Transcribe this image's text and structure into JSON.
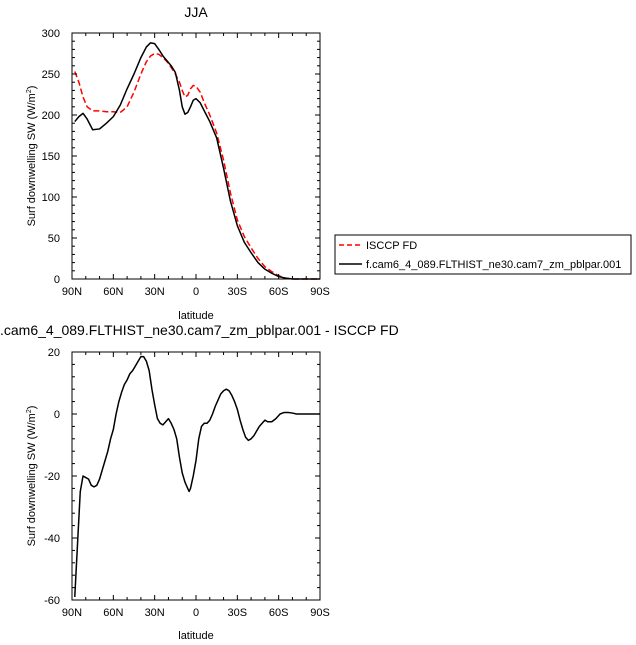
{
  "chart_data": [
    {
      "type": "line",
      "title": "JJA",
      "xlabel": "latitude",
      "ylabel": "Surf downwelling SW",
      "yunit_base": "(W/m",
      "yunit_sup": "2",
      "yunit_close": ")",
      "xlim": [
        90,
        -90
      ],
      "ylim": [
        0,
        300
      ],
      "xticks": [
        90,
        60,
        30,
        0,
        -30,
        -60,
        -90
      ],
      "xtick_labels": [
        "90N",
        "60N",
        "30N",
        "0",
        "30S",
        "60S",
        "90S"
      ],
      "yticks": [
        0,
        50,
        100,
        150,
        200,
        250,
        300
      ],
      "ytick_labels": [
        "0",
        "50",
        "100",
        "150",
        "200",
        "250",
        "300"
      ],
      "legend": "right",
      "grid": false,
      "series": [
        {
          "name": "ISCCP FD",
          "color": "#ff0000",
          "dash": "dashed",
          "x": [
            88,
            85,
            82,
            79,
            75,
            70,
            65,
            60,
            55,
            50,
            45,
            40,
            36,
            33,
            30,
            27,
            24,
            21,
            18,
            15,
            12,
            10,
            8,
            6,
            4,
            2,
            0,
            -3,
            -6,
            -10,
            -15,
            -20,
            -25,
            -30,
            -35,
            -40,
            -45,
            -50,
            -55,
            -60,
            -65,
            -70,
            -75,
            -80,
            -85,
            -90
          ],
          "y": [
            253,
            240,
            222,
            210,
            205,
            205,
            204,
            204,
            203,
            210,
            228,
            250,
            265,
            272,
            275,
            274,
            270,
            265,
            258,
            250,
            240,
            230,
            222,
            224,
            232,
            236,
            235,
            228,
            215,
            200,
            178,
            145,
            105,
            72,
            52,
            38,
            25,
            15,
            9,
            4,
            1,
            0,
            0,
            0,
            0,
            0
          ]
        },
        {
          "name": "f.cam6_4_089.FLTHIST_ne30.cam7_zm_pblpar.001",
          "color": "#000000",
          "dash": "solid",
          "x": [
            88,
            85,
            82,
            79,
            75,
            70,
            65,
            60,
            55,
            50,
            45,
            40,
            36,
            33,
            30,
            27,
            24,
            21,
            18,
            15,
            12,
            10,
            8,
            6,
            4,
            2,
            0,
            -3,
            -6,
            -10,
            -15,
            -20,
            -25,
            -30,
            -35,
            -40,
            -45,
            -50,
            -55,
            -60,
            -65,
            -70,
            -75,
            -80,
            -85,
            -90
          ],
          "y": [
            192,
            198,
            202,
            195,
            182,
            183,
            190,
            198,
            212,
            232,
            250,
            270,
            283,
            288,
            287,
            280,
            272,
            266,
            260,
            252,
            230,
            210,
            201,
            203,
            210,
            218,
            220,
            215,
            205,
            192,
            172,
            135,
            95,
            65,
            45,
            32,
            20,
            12,
            7,
            3,
            1,
            0,
            0,
            0,
            0,
            0
          ]
        }
      ]
    },
    {
      "type": "line",
      "title": ".cam6_4_089.FLTHIST_ne30.cam7_zm_pblpar.001 - ISCCP FD",
      "xlabel": "latitude",
      "ylabel": "Surf downwelling SW",
      "yunit_base": "(W/m",
      "yunit_sup": "2",
      "yunit_close": ")",
      "xlim": [
        90,
        -90
      ],
      "ylim": [
        -60,
        20
      ],
      "xticks": [
        90,
        60,
        30,
        0,
        -30,
        -60,
        -90
      ],
      "xtick_labels": [
        "90N",
        "60N",
        "30N",
        "0",
        "30S",
        "60S",
        "90S"
      ],
      "yticks": [
        -60,
        -40,
        -20,
        0,
        20
      ],
      "ytick_labels": [
        "-60",
        "-40",
        "-20",
        "0",
        "20"
      ],
      "grid": false,
      "series": [
        {
          "color": "#000000",
          "dash": "solid",
          "x": [
            88,
            86,
            84,
            82,
            80,
            78,
            76,
            74,
            72,
            70,
            68,
            66,
            64,
            62,
            60,
            58,
            56,
            54,
            52,
            50,
            48,
            46,
            44,
            42,
            40,
            38,
            36,
            34,
            32,
            30,
            28,
            26,
            24,
            22,
            20,
            18,
            16,
            14,
            12,
            10,
            8,
            6,
            5,
            4,
            3,
            2,
            0,
            -2,
            -4,
            -6,
            -8,
            -10,
            -12,
            -14,
            -16,
            -18,
            -20,
            -22,
            -24,
            -26,
            -28,
            -30,
            -32,
            -34,
            -36,
            -38,
            -40,
            -42,
            -44,
            -46,
            -48,
            -50,
            -52,
            -55,
            -58,
            -61,
            -64,
            -67,
            -70,
            -73,
            -76,
            -79,
            -82,
            -85,
            -88,
            -90
          ],
          "y": [
            -59,
            -42,
            -25,
            -20,
            -20.5,
            -21,
            -23,
            -23.5,
            -23,
            -21,
            -18,
            -15,
            -12,
            -8,
            -5,
            0,
            4,
            7,
            9.5,
            11,
            13,
            14,
            15.5,
            17,
            18.5,
            18.5,
            17,
            14,
            8,
            3,
            -1.5,
            -3,
            -3.5,
            -2.5,
            -1.5,
            -3,
            -5,
            -8,
            -14,
            -19,
            -22,
            -24,
            -25,
            -24,
            -22,
            -20,
            -15,
            -8,
            -4,
            -3,
            -3,
            -2,
            0,
            2.5,
            4.5,
            6.5,
            7.5,
            8,
            7.5,
            6,
            4,
            1.5,
            -2,
            -5,
            -7.5,
            -8.5,
            -8,
            -7,
            -5.5,
            -4,
            -3,
            -2,
            -2.5,
            -2.5,
            -1.5,
            0,
            0.5,
            0.5,
            0.3,
            0,
            0,
            0,
            0,
            0,
            0,
            0
          ]
        }
      ]
    }
  ]
}
